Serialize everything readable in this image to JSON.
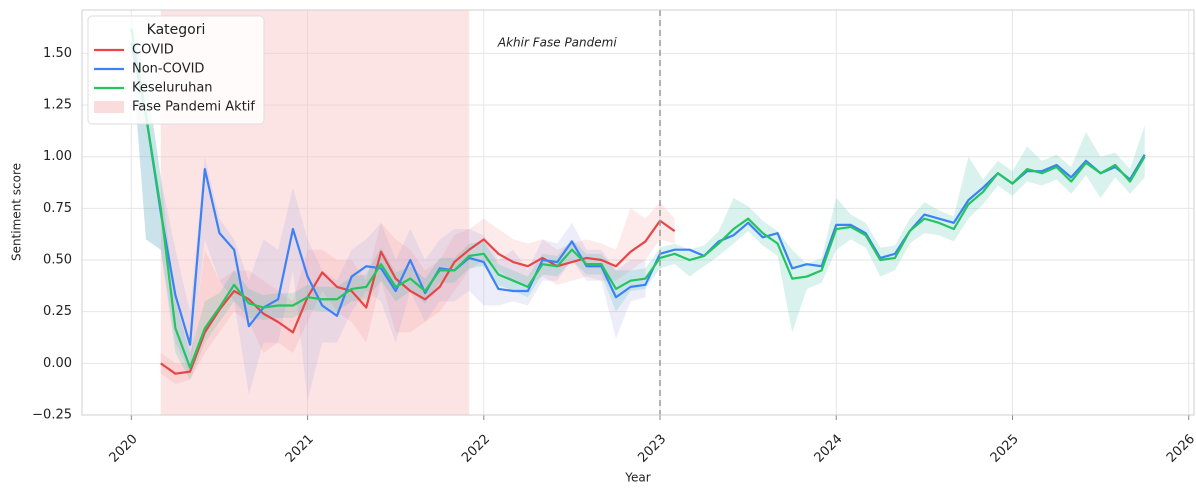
{
  "chart_data": {
    "type": "line",
    "xlabel": "Year",
    "ylabel": "Sentiment score",
    "xlim": [
      2019.72,
      2026.03
    ],
    "ylim": [
      -0.25,
      1.71
    ],
    "xticks": [
      2020,
      2021,
      2022,
      2023,
      2024,
      2025,
      2026
    ],
    "yticks": [
      {
        "value": -0.25,
        "label": "−0.25"
      },
      {
        "value": 0,
        "label": "0.00"
      },
      0.25,
      {
        "value": 0.5,
        "label": "0.50"
      },
      0.75,
      {
        "value": 1,
        "label": "1.00"
      },
      1.25,
      {
        "value": 1.5,
        "label": "1.50"
      }
    ],
    "grid": true,
    "legend_title": "Kategori",
    "legend_position": "upper-left",
    "span": {
      "label": "Fase Pandemi Aktif",
      "from": 2020.167,
      "to": 2021.917,
      "color": "#f9c4c4"
    },
    "vline": {
      "x": 2023.0,
      "color": "#999999"
    },
    "annotation": {
      "text": "Akhir Fase Pandemi",
      "x": 2022.08,
      "y": 1.55
    },
    "x": [
      2020.0,
      2020.083,
      2020.167,
      2020.25,
      2020.333,
      2020.417,
      2020.5,
      2020.583,
      2020.667,
      2020.75,
      2020.833,
      2020.917,
      2021.0,
      2021.083,
      2021.167,
      2021.25,
      2021.333,
      2021.417,
      2021.5,
      2021.583,
      2021.667,
      2021.75,
      2021.833,
      2021.917,
      2022.0,
      2022.083,
      2022.167,
      2022.25,
      2022.333,
      2022.417,
      2022.5,
      2022.583,
      2022.667,
      2022.75,
      2022.833,
      2022.917,
      2023.0,
      2023.083,
      2023.167,
      2023.25,
      2023.333,
      2023.417,
      2023.5,
      2023.583,
      2023.667,
      2023.75,
      2023.833,
      2023.917,
      2024.0,
      2024.083,
      2024.167,
      2024.25,
      2024.333,
      2024.417,
      2024.5,
      2024.583,
      2024.667,
      2024.75,
      2024.833,
      2024.917,
      2025.0,
      2025.083,
      2025.167,
      2025.25,
      2025.333,
      2025.417,
      2025.5,
      2025.583,
      2025.667,
      2025.75
    ],
    "series": [
      {
        "name": "COVID",
        "color": "#e84545",
        "band_color": "#f28b8b",
        "values": [
          null,
          null,
          0.0,
          -0.05,
          -0.04,
          0.15,
          0.26,
          0.35,
          0.31,
          0.24,
          0.2,
          0.15,
          0.32,
          0.44,
          0.37,
          0.35,
          0.27,
          0.54,
          0.41,
          0.35,
          0.31,
          0.37,
          0.49,
          0.55,
          0.6,
          0.53,
          0.49,
          0.47,
          0.51,
          0.47,
          0.49,
          0.51,
          0.5,
          0.47,
          0.54,
          0.59,
          0.69,
          0.64,
          null,
          null,
          null,
          null,
          null,
          null,
          null,
          null,
          null,
          null,
          null,
          null,
          null,
          null,
          null,
          null,
          null,
          null,
          null,
          null,
          null,
          null,
          null,
          null,
          null,
          null,
          null,
          null,
          null,
          null,
          null,
          null
        ],
        "lower": [
          null,
          null,
          -0.05,
          -0.1,
          -0.08,
          0.05,
          0.15,
          0.25,
          0.2,
          0.05,
          0.1,
          0.05,
          0.2,
          0.35,
          0.25,
          0.2,
          0.1,
          0.4,
          0.15,
          0.15,
          0.2,
          0.25,
          0.35,
          0.45,
          0.5,
          0.45,
          0.4,
          0.38,
          0.42,
          0.38,
          0.4,
          0.42,
          0.4,
          0.4,
          0.45,
          0.5,
          0.6,
          0.58,
          null,
          null,
          null,
          null,
          null,
          null,
          null,
          null,
          null,
          null,
          null,
          null,
          null,
          null,
          null,
          null,
          null,
          null,
          null,
          null,
          null,
          null,
          null,
          null,
          null,
          null,
          null,
          null,
          null,
          null,
          null,
          null
        ],
        "upper": [
          null,
          null,
          0.05,
          0.0,
          0.0,
          0.55,
          0.4,
          0.45,
          0.45,
          0.4,
          0.35,
          0.3,
          0.55,
          0.55,
          0.5,
          0.5,
          0.4,
          0.68,
          0.6,
          0.55,
          0.45,
          0.5,
          0.62,
          0.65,
          0.7,
          0.65,
          0.6,
          0.58,
          0.6,
          0.55,
          0.58,
          0.6,
          0.58,
          0.55,
          0.75,
          0.7,
          0.78,
          0.7,
          null,
          null,
          null,
          null,
          null,
          null,
          null,
          null,
          null,
          null,
          null,
          null,
          null,
          null,
          null,
          null,
          null,
          null,
          null,
          null,
          null,
          null,
          null,
          null,
          null,
          null,
          null,
          null,
          null,
          null,
          null,
          null
        ]
      },
      {
        "name": "Non-COVID",
        "color": "#3b82f6",
        "band_color": "#9a9ae6",
        "values": [
          1.55,
          1.2,
          0.73,
          0.33,
          0.09,
          0.94,
          0.63,
          0.55,
          0.18,
          0.27,
          0.31,
          0.65,
          0.42,
          0.28,
          0.23,
          0.42,
          0.47,
          0.46,
          0.35,
          0.5,
          0.34,
          0.46,
          0.45,
          0.51,
          0.49,
          0.36,
          0.35,
          0.35,
          0.5,
          0.49,
          0.59,
          0.47,
          0.47,
          0.32,
          0.37,
          0.38,
          0.53,
          0.55,
          0.55,
          0.52,
          0.59,
          0.62,
          0.68,
          0.61,
          0.63,
          0.46,
          0.48,
          0.47,
          0.67,
          0.67,
          0.63,
          0.51,
          0.53,
          0.64,
          0.72,
          0.7,
          0.68,
          0.79,
          0.85,
          0.92,
          0.87,
          0.93,
          0.93,
          0.96,
          0.9,
          0.98,
          0.92,
          0.95,
          0.89,
          1.01
        ],
        "lower": [
          1.5,
          0.6,
          0.55,
          0.1,
          -0.05,
          0.6,
          0.4,
          0.3,
          -0.15,
          0.1,
          0.1,
          0.45,
          -0.18,
          0.1,
          0.1,
          0.25,
          0.35,
          0.3,
          0.1,
          0.35,
          0.2,
          0.3,
          0.3,
          0.35,
          0.28,
          0.28,
          0.3,
          0.28,
          0.4,
          0.4,
          0.5,
          0.4,
          0.4,
          0.12,
          0.3,
          0.32,
          null,
          null,
          null,
          null,
          null,
          null,
          null,
          null,
          null,
          null,
          null,
          null,
          null,
          null,
          null,
          null,
          null,
          null,
          null,
          null,
          null,
          null,
          null,
          null,
          null,
          null,
          null,
          null,
          null,
          null,
          null,
          null,
          null,
          null
        ],
        "upper": [
          1.62,
          1.4,
          0.9,
          0.55,
          0.25,
          1.0,
          0.7,
          0.6,
          0.4,
          0.6,
          0.55,
          0.85,
          0.6,
          0.45,
          0.4,
          0.55,
          0.6,
          0.68,
          0.5,
          0.65,
          0.5,
          0.6,
          0.65,
          0.65,
          0.62,
          0.5,
          0.55,
          0.45,
          0.6,
          0.58,
          0.68,
          0.55,
          0.55,
          0.45,
          0.5,
          0.5,
          null,
          null,
          null,
          null,
          null,
          null,
          null,
          null,
          null,
          null,
          null,
          null,
          null,
          null,
          null,
          null,
          null,
          null,
          null,
          null,
          null,
          null,
          null,
          null,
          null,
          null,
          null,
          null,
          null,
          null,
          null,
          null,
          null,
          null
        ]
      },
      {
        "name": "Keseluruhan",
        "color": "#22c55e",
        "band_color": "#2bb5a0",
        "values": [
          1.62,
          1.2,
          0.75,
          0.17,
          -0.02,
          0.17,
          0.27,
          0.38,
          0.29,
          0.27,
          0.28,
          0.28,
          0.32,
          0.31,
          0.31,
          0.36,
          0.37,
          0.48,
          0.37,
          0.41,
          0.35,
          0.45,
          0.45,
          0.52,
          0.53,
          0.43,
          0.4,
          0.37,
          0.48,
          0.47,
          0.55,
          0.48,
          0.48,
          0.36,
          0.4,
          0.41,
          0.51,
          0.53,
          0.5,
          0.52,
          0.58,
          0.65,
          0.7,
          0.63,
          0.58,
          0.41,
          0.42,
          0.45,
          0.65,
          0.66,
          0.62,
          0.5,
          0.51,
          0.64,
          0.7,
          0.68,
          0.65,
          0.77,
          0.83,
          0.92,
          0.87,
          0.94,
          0.92,
          0.95,
          0.88,
          0.97,
          0.92,
          0.96,
          0.88,
          1.0
        ],
        "lower": [
          1.55,
          0.6,
          0.55,
          0.05,
          -0.08,
          0.1,
          0.2,
          0.3,
          0.22,
          0.21,
          0.22,
          0.22,
          0.26,
          0.25,
          0.25,
          0.3,
          0.31,
          0.4,
          0.3,
          0.35,
          0.29,
          0.39,
          0.39,
          0.46,
          0.47,
          0.38,
          0.35,
          0.32,
          0.43,
          0.42,
          0.5,
          0.43,
          0.43,
          0.25,
          0.35,
          0.36,
          0.46,
          0.48,
          0.42,
          0.47,
          0.52,
          0.58,
          0.64,
          0.57,
          0.52,
          0.15,
          0.36,
          0.39,
          0.55,
          0.6,
          0.56,
          0.42,
          0.45,
          0.58,
          0.63,
          0.62,
          0.59,
          0.7,
          0.77,
          0.86,
          0.81,
          0.88,
          0.86,
          0.89,
          0.82,
          0.91,
          0.8,
          0.9,
          0.82,
          0.9
        ],
        "upper": [
          1.68,
          1.4,
          0.9,
          0.3,
          0.05,
          0.3,
          0.34,
          0.45,
          0.36,
          0.33,
          0.34,
          0.34,
          0.38,
          0.37,
          0.37,
          0.42,
          0.43,
          0.56,
          0.44,
          0.47,
          0.41,
          0.51,
          0.51,
          0.58,
          0.59,
          0.48,
          0.45,
          0.42,
          0.53,
          0.52,
          0.6,
          0.53,
          0.53,
          0.45,
          0.45,
          0.46,
          0.56,
          0.58,
          0.55,
          0.57,
          0.64,
          0.8,
          0.76,
          0.69,
          0.64,
          0.55,
          0.48,
          0.51,
          0.8,
          0.72,
          0.68,
          0.56,
          0.57,
          0.7,
          0.78,
          0.74,
          0.71,
          1.0,
          0.89,
          0.98,
          0.93,
          1.05,
          0.98,
          1.01,
          0.95,
          1.12,
          1.0,
          1.02,
          0.94,
          1.15
        ]
      }
    ]
  }
}
